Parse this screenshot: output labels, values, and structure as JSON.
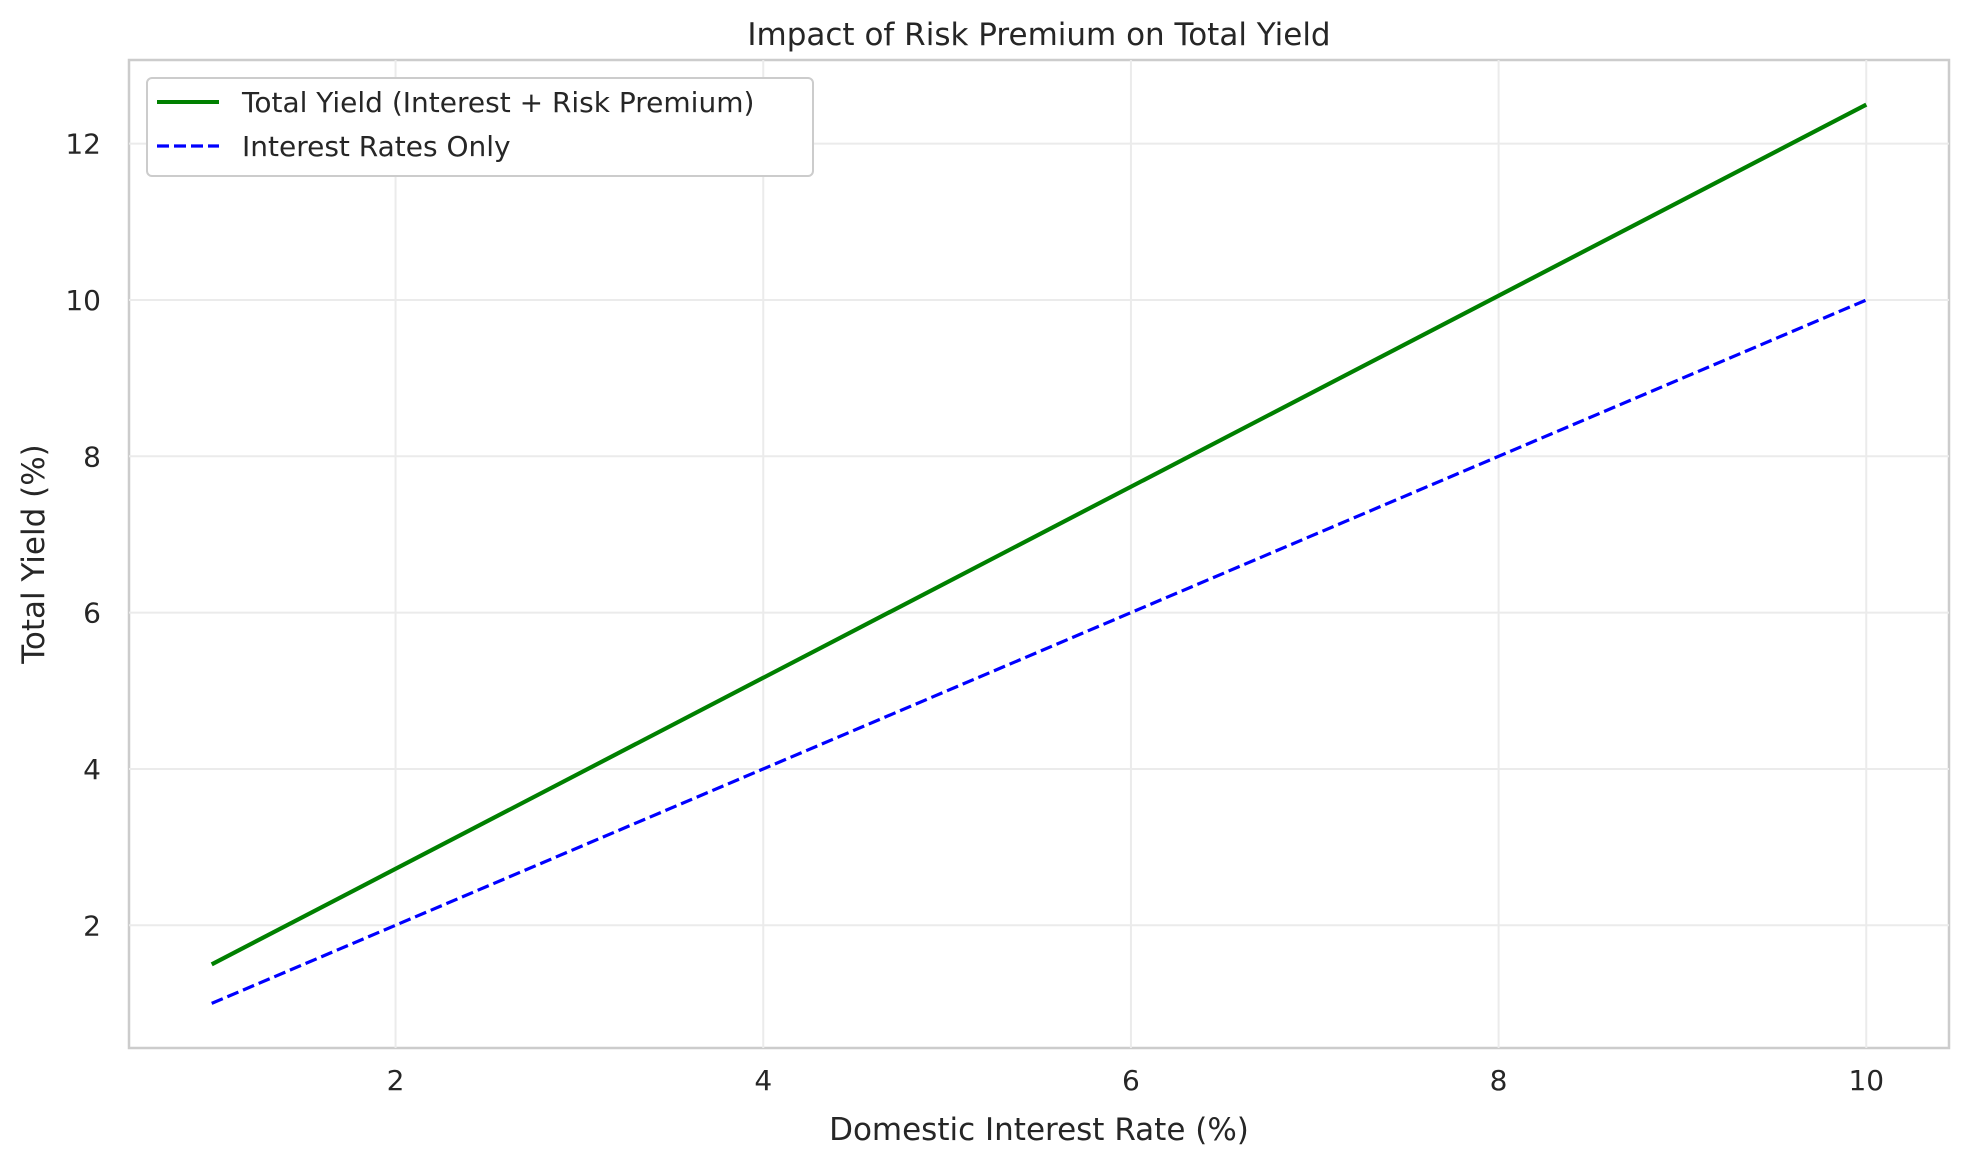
{
  "chart_data": {
    "type": "line",
    "title": "Impact of Risk Premium on Total Yield",
    "xlabel": "Domestic Interest Rate (%)",
    "ylabel": "Total Yield (%)",
    "xlim": [
      0.55,
      10.45
    ],
    "ylim": [
      0.43,
      13.07
    ],
    "xticks": [
      2,
      4,
      6,
      8,
      10
    ],
    "yticks": [
      2,
      4,
      6,
      8,
      10,
      12
    ],
    "grid": true,
    "legend_position": "top-left",
    "x": [
      1,
      10
    ],
    "series": [
      {
        "name": "Total Yield (Interest + Risk Premium)",
        "values": [
          1.5,
          12.5
        ],
        "color": "#008000",
        "style": "solid"
      },
      {
        "name": "Interest Rates Only",
        "values": [
          1.0,
          10.0
        ],
        "color": "#0000ff",
        "style": "dashed"
      }
    ]
  }
}
